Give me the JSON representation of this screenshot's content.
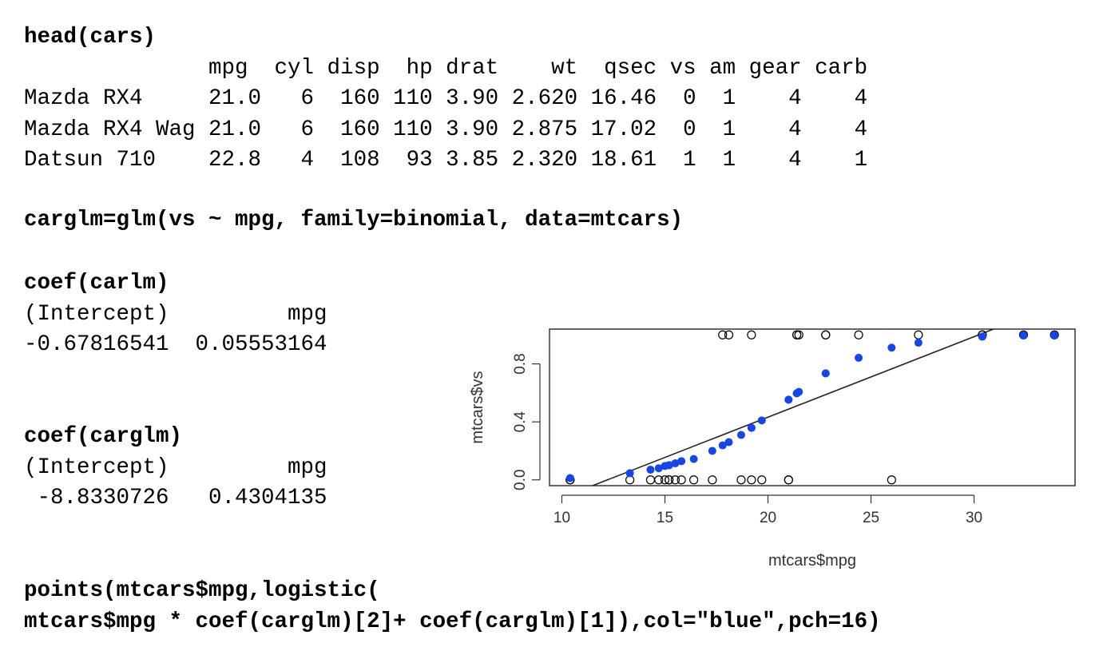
{
  "commands": {
    "head": "head(cars)",
    "glm": "carglm=glm(vs ~ mpg, family=binomial, data=mtcars)",
    "coef_lm": "coef(carlm)",
    "coef_glm": "coef(carglm)",
    "points_line1": "points(mtcars$mpg,logistic(",
    "points_line2": "mtcars$mpg * coef(carglm)[2]+ coef(carglm)[1]),col=\"blue\",pch=16)"
  },
  "head_table": {
    "header": "              mpg  cyl disp  hp drat    wt  qsec vs am gear carb",
    "rows": [
      "Mazda RX4     21.0   6  160 110 3.90 2.620 16.46  0  1    4    4",
      "Mazda RX4 Wag 21.0   6  160 110 3.90 2.875 17.02  0  1    4    4",
      "Datsun 710    22.8   4  108  93 3.85 2.320 18.61  1  1    4    1"
    ]
  },
  "coef_lm_output": {
    "header": "(Intercept)         mpg",
    "values": "-0.67816541  0.05553164"
  },
  "coef_glm_output": {
    "header": "(Intercept)         mpg",
    "values": " -8.8330726   0.4304135"
  },
  "chart_data": {
    "type": "scatter",
    "xlabel": "mtcars$mpg",
    "ylabel": "mtcars$vs",
    "xlim": [
      9.4,
      34.9
    ],
    "ylim": [
      -0.04,
      1.04
    ],
    "xticks": [
      10,
      15,
      20,
      25,
      30
    ],
    "yticks": [
      0.0,
      0.4,
      0.8
    ],
    "yticks_labels": [
      "0.0",
      "0.4",
      "0.8"
    ],
    "grid": false,
    "series": [
      {
        "style": "open-circle",
        "color": "#000000",
        "x": [
          21.0,
          21.0,
          22.8,
          21.4,
          18.7,
          18.1,
          14.3,
          24.4,
          22.8,
          19.2,
          17.8,
          16.4,
          17.3,
          15.2,
          10.4,
          10.4,
          14.7,
          32.4,
          30.4,
          33.9,
          21.5,
          15.5,
          15.2,
          13.3,
          19.2,
          27.3,
          26.0,
          30.4,
          15.8,
          19.7,
          15.0,
          21.4
        ],
        "y": [
          0,
          0,
          1,
          1,
          0,
          1,
          0,
          1,
          1,
          1,
          1,
          0,
          0,
          0,
          0,
          0,
          0,
          1,
          1,
          1,
          1,
          0,
          0,
          0,
          0,
          1,
          0,
          1,
          0,
          0,
          0,
          1
        ]
      },
      {
        "style": "filled-dot",
        "color": "#1446e8",
        "x": [
          21.0,
          21.0,
          22.8,
          21.4,
          18.7,
          18.1,
          14.3,
          24.4,
          22.8,
          19.2,
          17.8,
          16.4,
          17.3,
          15.2,
          10.4,
          10.4,
          14.7,
          32.4,
          30.4,
          33.9,
          21.5,
          15.5,
          15.2,
          13.3,
          19.2,
          27.3,
          26.0,
          30.4,
          15.8,
          19.7,
          15.0,
          21.4
        ],
        "y": [
          0.553,
          0.553,
          0.735,
          0.597,
          0.31,
          0.26,
          0.07,
          0.842,
          0.735,
          0.359,
          0.238,
          0.144,
          0.2,
          0.101,
          0.012,
          0.012,
          0.08,
          0.996,
          0.988,
          0.998,
          0.607,
          0.114,
          0.101,
          0.046,
          0.359,
          0.946,
          0.912,
          0.988,
          0.129,
          0.41,
          0.096,
          0.597
        ]
      }
    ],
    "line": {
      "intercept": -0.67816541,
      "slope": 0.05553164,
      "color": "#222222"
    }
  }
}
